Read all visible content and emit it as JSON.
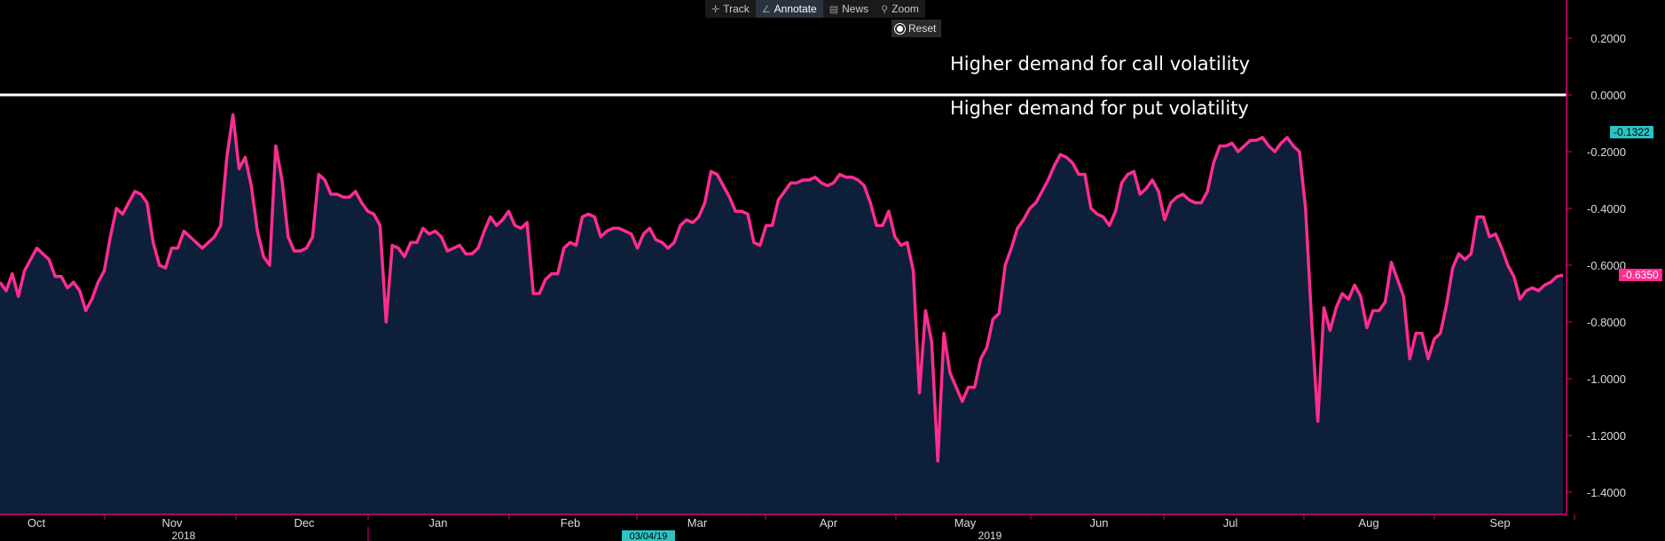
{
  "toolbar": {
    "track_label": "Track",
    "annotate_label": "Annotate",
    "news_label": "News",
    "zoom_label": "Zoom",
    "reset_label": "Reset"
  },
  "annotations": {
    "upper": "Higher demand for call volatility",
    "lower": "Higher demand for put volatility"
  },
  "chart_data": {
    "type": "area",
    "ylim": [
      -1.5,
      0.35
    ],
    "yticks": [
      "0.2000",
      "0.0000",
      "-0.2000",
      "-0.4000",
      "-0.6000",
      "-0.8000",
      "-1.0000",
      "-1.2000",
      "-1.4000"
    ],
    "ytick_values": [
      0.2,
      0.0,
      -0.2,
      -0.4,
      -0.6,
      -0.8,
      -1.0,
      -1.2,
      -1.4
    ],
    "month_labels": [
      "Oct",
      "Nov",
      "Dec",
      "Jan",
      "Feb",
      "Mar",
      "Apr",
      "May",
      "Jun",
      "Jul",
      "Aug",
      "Sep"
    ],
    "year_labels": [
      "2018",
      "2019"
    ],
    "cursor_date": "03/04/19",
    "reference_value": 0.0,
    "last_value_label": "-0.6350",
    "crosshair_value_label": "-0.1322",
    "colors": {
      "line": "#ff2d8f",
      "fill": "#0e1f3a",
      "reference": "#ffffff",
      "axis": "#e0007a",
      "crosshair_label_bg": "#2ac4c4"
    },
    "series": [
      {
        "values": [
          -0.66,
          -0.69,
          -0.63,
          -0.71,
          -0.62,
          -0.58,
          -0.54,
          -0.56,
          -0.58,
          -0.64,
          -0.64,
          -0.68,
          -0.66,
          -0.69,
          -0.76,
          -0.72,
          -0.66,
          -0.62,
          -0.5,
          -0.4,
          -0.42,
          -0.38,
          -0.34,
          -0.35,
          -0.38,
          -0.52,
          -0.6,
          -0.61,
          -0.54,
          -0.54,
          -0.48,
          -0.5,
          -0.52,
          -0.54,
          -0.52,
          -0.5,
          -0.46,
          -0.22,
          -0.07,
          -0.26,
          -0.22,
          -0.32,
          -0.48,
          -0.57,
          -0.6,
          -0.18,
          -0.3,
          -0.5,
          -0.55,
          -0.55,
          -0.54,
          -0.5,
          -0.28,
          -0.3,
          -0.35,
          -0.35,
          -0.36,
          -0.36,
          -0.34,
          -0.38,
          -0.41,
          -0.42,
          -0.46,
          -0.8,
          -0.53,
          -0.54,
          -0.57,
          -0.52,
          -0.52,
          -0.47,
          -0.49,
          -0.48,
          -0.5,
          -0.55,
          -0.54,
          -0.53,
          -0.56,
          -0.56,
          -0.54,
          -0.48,
          -0.43,
          -0.46,
          -0.44,
          -0.41,
          -0.46,
          -0.47,
          -0.45,
          -0.7,
          -0.7,
          -0.65,
          -0.63,
          -0.63,
          -0.54,
          -0.52,
          -0.53,
          -0.43,
          -0.42,
          -0.43,
          -0.5,
          -0.48,
          -0.47,
          -0.47,
          -0.48,
          -0.49,
          -0.54,
          -0.49,
          -0.47,
          -0.51,
          -0.52,
          -0.54,
          -0.52,
          -0.46,
          -0.44,
          -0.45,
          -0.43,
          -0.38,
          -0.27,
          -0.28,
          -0.32,
          -0.36,
          -0.41,
          -0.41,
          -0.42,
          -0.52,
          -0.53,
          -0.46,
          -0.46,
          -0.37,
          -0.34,
          -0.31,
          -0.31,
          -0.3,
          -0.3,
          -0.29,
          -0.31,
          -0.32,
          -0.31,
          -0.28,
          -0.29,
          -0.29,
          -0.3,
          -0.32,
          -0.38,
          -0.46,
          -0.46,
          -0.41,
          -0.5,
          -0.53,
          -0.52,
          -0.62,
          -1.05,
          -0.76,
          -0.87,
          -1.29,
          -0.84,
          -0.98,
          -1.03,
          -1.08,
          -1.03,
          -1.03,
          -0.93,
          -0.89,
          -0.79,
          -0.77,
          -0.6,
          -0.54,
          -0.47,
          -0.44,
          -0.4,
          -0.38,
          -0.34,
          -0.3,
          -0.25,
          -0.21,
          -0.22,
          -0.24,
          -0.28,
          -0.28,
          -0.4,
          -0.42,
          -0.43,
          -0.46,
          -0.41,
          -0.31,
          -0.28,
          -0.27,
          -0.35,
          -0.33,
          -0.3,
          -0.34,
          -0.44,
          -0.38,
          -0.36,
          -0.35,
          -0.37,
          -0.38,
          -0.38,
          -0.34,
          -0.24,
          -0.18,
          -0.18,
          -0.17,
          -0.2,
          -0.18,
          -0.16,
          -0.16,
          -0.15,
          -0.18,
          -0.2,
          -0.17,
          -0.15,
          -0.18,
          -0.2,
          -0.4,
          -0.8,
          -1.15,
          -0.75,
          -0.83,
          -0.75,
          -0.7,
          -0.72,
          -0.67,
          -0.71,
          -0.82,
          -0.76,
          -0.76,
          -0.73,
          -0.59,
          -0.65,
          -0.71,
          -0.93,
          -0.84,
          -0.84,
          -0.93,
          -0.86,
          -0.84,
          -0.74,
          -0.61,
          -0.56,
          -0.58,
          -0.56,
          -0.43,
          -0.43,
          -0.5,
          -0.49,
          -0.54,
          -0.6,
          -0.64,
          -0.72,
          -0.69,
          -0.68,
          -0.69,
          -0.67,
          -0.66,
          -0.64,
          -0.635
        ]
      }
    ]
  }
}
